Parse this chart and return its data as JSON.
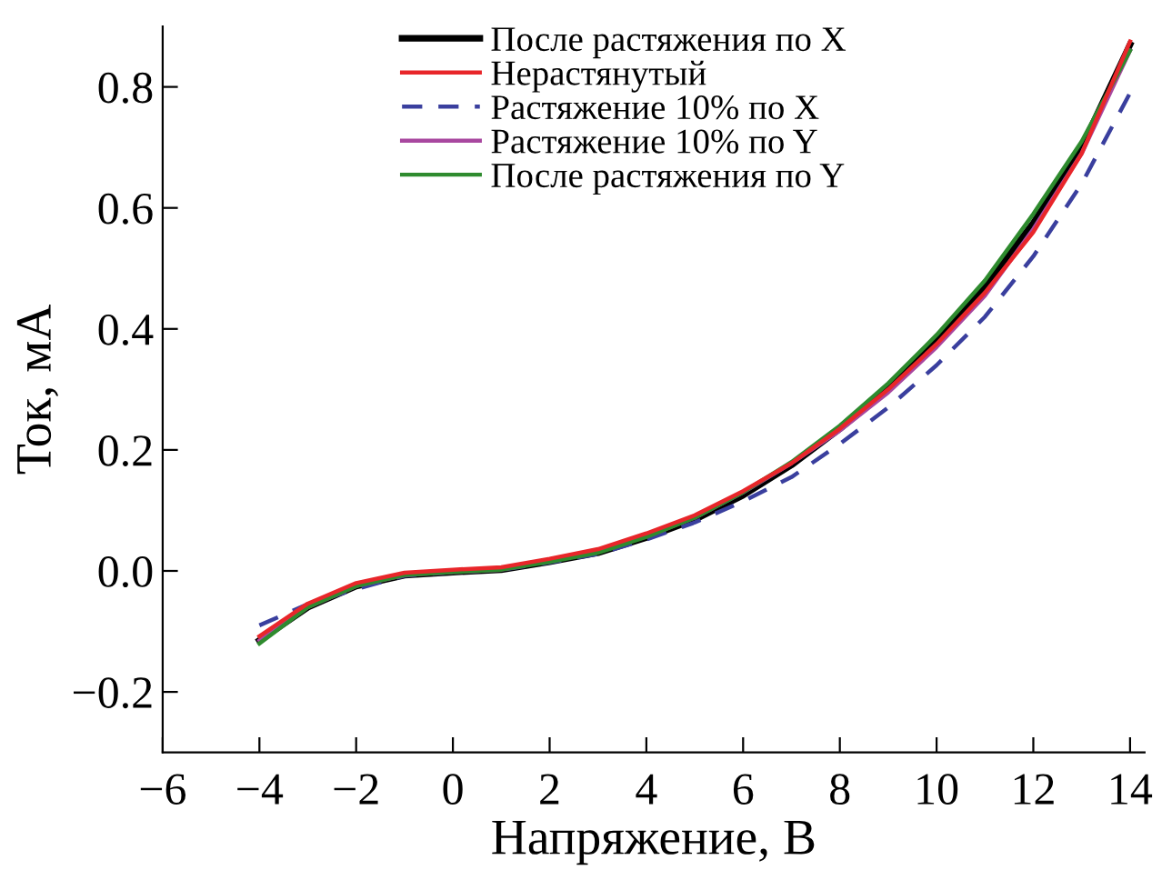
{
  "chart_data": {
    "type": "line",
    "xlabel": "Напряжение, В",
    "ylabel": "Ток, мА",
    "x": [
      -4,
      -3,
      -2,
      -1,
      0,
      1,
      2,
      3,
      4,
      5,
      6,
      7,
      8,
      9,
      10,
      11,
      12,
      13,
      14
    ],
    "series": [
      {
        "name": "После растяжения по X",
        "color": "#000000",
        "line_style": "solid",
        "values": [
          -0.115,
          -0.06,
          -0.025,
          -0.007,
          -0.002,
          0.002,
          0.015,
          0.03,
          0.055,
          0.085,
          0.125,
          0.175,
          0.235,
          0.3,
          0.38,
          0.47,
          0.575,
          0.7,
          0.87
        ]
      },
      {
        "name": "Нерастянутый",
        "color": "#e8262a",
        "line_style": "solid",
        "values": [
          -0.108,
          -0.054,
          -0.02,
          -0.003,
          0.002,
          0.006,
          0.02,
          0.036,
          0.062,
          0.092,
          0.132,
          0.178,
          0.235,
          0.3,
          0.375,
          0.46,
          0.56,
          0.69,
          0.875
        ]
      },
      {
        "name": "Растяжение 10% по X",
        "color": "#3a3f9e",
        "line_style": "dashed",
        "values": [
          -0.09,
          -0.055,
          -0.03,
          -0.008,
          -0.002,
          0.002,
          0.014,
          0.028,
          0.052,
          0.08,
          0.115,
          0.155,
          0.21,
          0.27,
          0.34,
          0.42,
          0.52,
          0.64,
          0.79
        ]
      },
      {
        "name": "Растяжение 10% по Y",
        "color": "#a8479f",
        "line_style": "solid",
        "values": [
          -0.115,
          -0.06,
          -0.025,
          -0.007,
          -0.002,
          0.002,
          0.016,
          0.032,
          0.057,
          0.088,
          0.13,
          0.178,
          0.232,
          0.295,
          0.37,
          0.455,
          0.565,
          0.69,
          0.86
        ]
      },
      {
        "name": "После растяжения по Y",
        "color": "#2e8b2e",
        "line_style": "solid",
        "values": [
          -0.12,
          -0.06,
          -0.025,
          -0.007,
          -0.002,
          0.002,
          0.015,
          0.03,
          0.056,
          0.088,
          0.13,
          0.18,
          0.24,
          0.31,
          0.39,
          0.48,
          0.59,
          0.71,
          0.86
        ]
      }
    ],
    "xlim": [
      -6,
      14.3
    ],
    "xticks": [
      {
        "value": -6,
        "label": "−6"
      },
      {
        "value": -4,
        "label": "−4"
      },
      {
        "value": -2,
        "label": "−2"
      },
      0,
      2,
      4,
      6,
      8,
      10,
      12,
      14
    ],
    "ylim": [
      -0.3,
      0.9
    ],
    "yticks": [
      {
        "value": -0.2,
        "label": "−0.2"
      },
      {
        "value": 0,
        "label": "0.0"
      },
      0.2,
      0.4,
      0.6,
      0.8
    ],
    "legend": "top",
    "grid": false
  }
}
